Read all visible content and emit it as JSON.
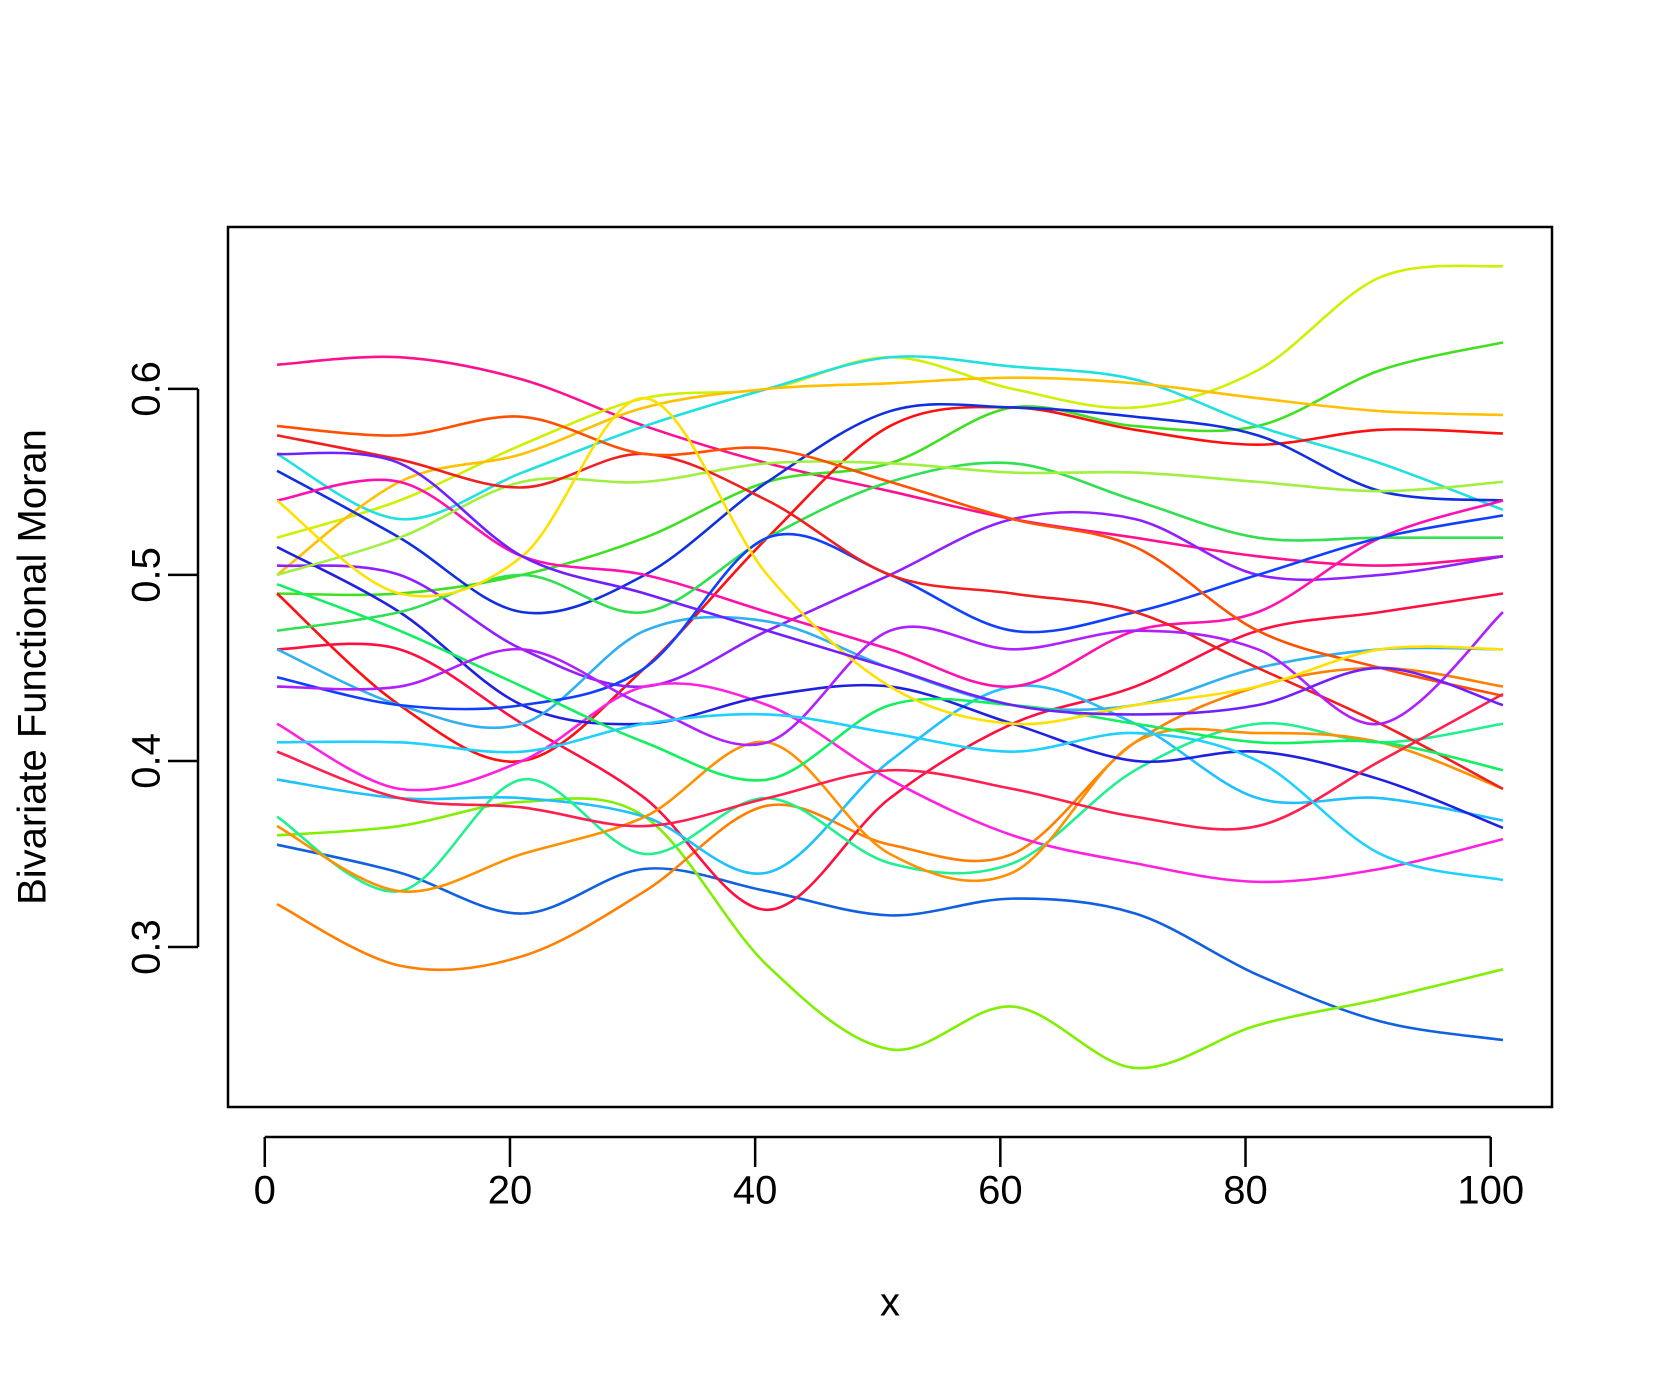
{
  "chart_data": {
    "type": "line",
    "xlabel": "x",
    "ylabel": "Bivariate Functional Moran",
    "x": [
      1,
      11,
      21,
      31,
      41,
      51,
      61,
      71,
      81,
      91,
      101
    ],
    "xlim": [
      -3,
      105
    ],
    "xticks": [
      0,
      20,
      40,
      60,
      80,
      100
    ],
    "ylim": [
      0.214,
      0.687
    ],
    "yticks": [
      0.3,
      0.4,
      0.5,
      0.6
    ],
    "series": [
      {
        "color": "#1060e0",
        "values": [
          0.355,
          0.34,
          0.318,
          0.342,
          0.33,
          0.317,
          0.326,
          0.318,
          0.285,
          0.26,
          0.25
        ]
      },
      {
        "color": "#80f000",
        "values": [
          0.36,
          0.365,
          0.378,
          0.37,
          0.29,
          0.245,
          0.268,
          0.235,
          0.258,
          0.272,
          0.288
        ]
      },
      {
        "color": "#ff8000",
        "values": [
          0.323,
          0.29,
          0.295,
          0.33,
          0.376,
          0.355,
          0.35,
          0.41,
          0.44,
          0.45,
          0.44
        ]
      },
      {
        "color": "#ff1090",
        "values": [
          0.613,
          0.617,
          0.605,
          0.58,
          0.56,
          0.545,
          0.53,
          0.52,
          0.51,
          0.505,
          0.51
        ]
      },
      {
        "color": "#d0f000",
        "values": [
          0.52,
          0.54,
          0.57,
          0.595,
          0.6,
          0.617,
          0.6,
          0.59,
          0.61,
          0.66,
          0.666
        ]
      },
      {
        "color": "#40e020",
        "values": [
          0.49,
          0.49,
          0.5,
          0.52,
          0.55,
          0.56,
          0.59,
          0.58,
          0.58,
          0.61,
          0.625
        ]
      },
      {
        "color": "#20e0e0",
        "values": [
          0.565,
          0.53,
          0.555,
          0.58,
          0.6,
          0.617,
          0.612,
          0.605,
          0.58,
          0.56,
          0.535
        ]
      },
      {
        "color": "#ffc000",
        "values": [
          0.5,
          0.55,
          0.565,
          0.59,
          0.6,
          0.603,
          0.606,
          0.603,
          0.595,
          0.588,
          0.586
        ]
      },
      {
        "color": "#ff1010",
        "values": [
          0.49,
          0.43,
          0.4,
          0.45,
          0.52,
          0.58,
          0.59,
          0.578,
          0.57,
          0.578,
          0.576
        ]
      },
      {
        "color": "#ff1040",
        "values": [
          0.46,
          0.46,
          0.42,
          0.38,
          0.32,
          0.38,
          0.42,
          0.44,
          0.47,
          0.48,
          0.49
        ]
      },
      {
        "color": "#1030e0",
        "values": [
          0.556,
          0.52,
          0.48,
          0.5,
          0.55,
          0.588,
          0.59,
          0.585,
          0.575,
          0.545,
          0.54
        ]
      },
      {
        "color": "#9020ff",
        "values": [
          0.505,
          0.5,
          0.46,
          0.44,
          0.47,
          0.5,
          0.53,
          0.53,
          0.5,
          0.5,
          0.51
        ]
      },
      {
        "color": "#ff20e0",
        "values": [
          0.42,
          0.385,
          0.4,
          0.44,
          0.43,
          0.39,
          0.36,
          0.345,
          0.335,
          0.342,
          0.358
        ]
      },
      {
        "color": "#20c0ff",
        "values": [
          0.39,
          0.38,
          0.38,
          0.37,
          0.34,
          0.4,
          0.44,
          0.42,
          0.38,
          0.38,
          0.368
        ]
      },
      {
        "color": "#20f090",
        "values": [
          0.37,
          0.33,
          0.39,
          0.35,
          0.38,
          0.345,
          0.345,
          0.395,
          0.42,
          0.41,
          0.42
        ]
      },
      {
        "color": "#ff9000",
        "values": [
          0.365,
          0.33,
          0.35,
          0.37,
          0.41,
          0.35,
          0.34,
          0.41,
          0.415,
          0.41,
          0.385
        ]
      },
      {
        "color": "#2020e0",
        "values": [
          0.515,
          0.48,
          0.43,
          0.42,
          0.435,
          0.44,
          0.42,
          0.4,
          0.405,
          0.39,
          0.364
        ]
      },
      {
        "color": "#ff10b0",
        "values": [
          0.54,
          0.55,
          0.51,
          0.5,
          0.48,
          0.46,
          0.44,
          0.47,
          0.48,
          0.52,
          0.54
        ]
      },
      {
        "color": "#30e050",
        "values": [
          0.47,
          0.48,
          0.5,
          0.48,
          0.52,
          0.55,
          0.56,
          0.54,
          0.52,
          0.52,
          0.52
        ]
      },
      {
        "color": "#a0f040",
        "values": [
          0.5,
          0.52,
          0.55,
          0.55,
          0.56,
          0.56,
          0.555,
          0.555,
          0.55,
          0.545,
          0.55
        ]
      },
      {
        "color": "#30b0f0",
        "values": [
          0.46,
          0.43,
          0.42,
          0.47,
          0.475,
          0.45,
          0.43,
          0.43,
          0.45,
          0.46,
          0.46
        ]
      },
      {
        "color": "#1040ff",
        "values": [
          0.445,
          0.43,
          0.43,
          0.45,
          0.52,
          0.5,
          0.47,
          0.48,
          0.5,
          0.52,
          0.532
        ]
      },
      {
        "color": "#f02020",
        "values": [
          0.575,
          0.562,
          0.547,
          0.565,
          0.54,
          0.5,
          0.49,
          0.48,
          0.45,
          0.42,
          0.385
        ]
      },
      {
        "color": "#ff5000",
        "values": [
          0.58,
          0.575,
          0.585,
          0.565,
          0.568,
          0.55,
          0.53,
          0.515,
          0.47,
          0.45,
          0.435
        ]
      },
      {
        "color": "#10f060",
        "values": [
          0.495,
          0.47,
          0.44,
          0.41,
          0.39,
          0.43,
          0.43,
          0.42,
          0.41,
          0.41,
          0.395
        ]
      },
      {
        "color": "#b020ff",
        "values": [
          0.44,
          0.44,
          0.46,
          0.43,
          0.41,
          0.47,
          0.46,
          0.47,
          0.46,
          0.42,
          0.48
        ]
      },
      {
        "color": "#ff2050",
        "values": [
          0.405,
          0.38,
          0.375,
          0.365,
          0.38,
          0.395,
          0.385,
          0.37,
          0.365,
          0.4,
          0.436
        ]
      },
      {
        "color": "#ffe000",
        "values": [
          0.54,
          0.49,
          0.51,
          0.595,
          0.5,
          0.44,
          0.42,
          0.43,
          0.44,
          0.46,
          0.46
        ]
      },
      {
        "color": "#20d0ff",
        "values": [
          0.41,
          0.41,
          0.405,
          0.42,
          0.425,
          0.415,
          0.405,
          0.415,
          0.4,
          0.35,
          0.336
        ]
      },
      {
        "color": "#7020ff",
        "values": [
          0.565,
          0.56,
          0.51,
          0.49,
          0.47,
          0.45,
          0.43,
          0.425,
          0.43,
          0.45,
          0.43
        ]
      }
    ]
  }
}
